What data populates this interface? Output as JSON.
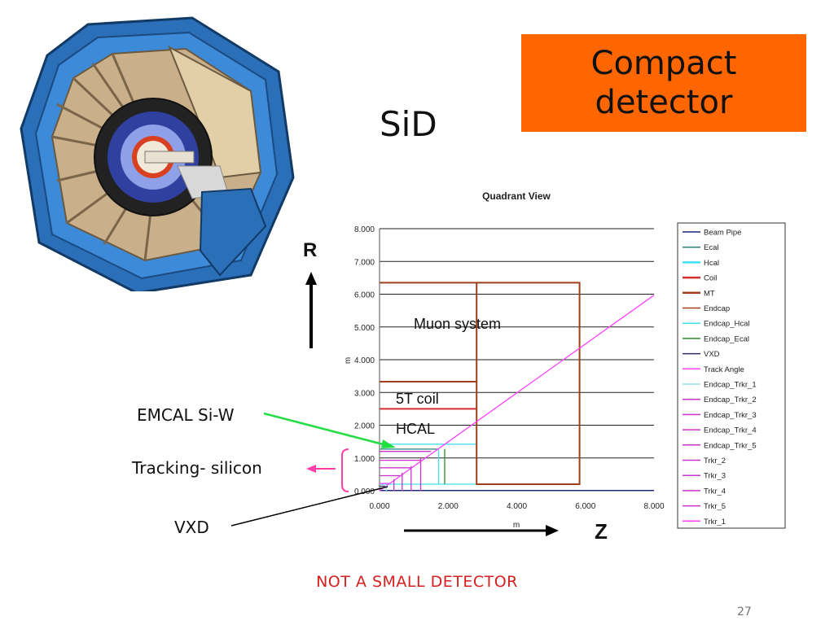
{
  "slide": {
    "title_banner": [
      "Compact",
      "detector"
    ],
    "heading": "SiD",
    "footer_note": "NOT A SMALL DETECTOR",
    "slide_number": "27",
    "callouts": {
      "emcal": "EMCAL Si-W",
      "tracking": "Tracking- silicon",
      "vxd": "VXD"
    },
    "axis_letters": {
      "r": "R",
      "z": "Z"
    }
  },
  "chart_data": {
    "type": "line",
    "title": "Quadrant View",
    "xlabel": "m",
    "ylabel": "m",
    "xlim": [
      0,
      8
    ],
    "ylim": [
      0,
      8
    ],
    "x_ticks": [
      "0.000",
      "2.000",
      "4.000",
      "6.000",
      "8.000"
    ],
    "y_ticks": [
      "0.000",
      "1.000",
      "2.000",
      "3.000",
      "4.000",
      "5.000",
      "6.000",
      "7.000",
      "8.000"
    ],
    "grid": "horizontal",
    "legend_position": "right",
    "annotations": [
      "Muon system",
      "5T coil",
      "HCAL"
    ],
    "series": [
      {
        "name": "Beam Pipe",
        "color": "#1a237e",
        "points": [
          [
            0,
            0.01
          ],
          [
            8,
            0.01
          ]
        ]
      },
      {
        "name": "Ecal",
        "color": "#2e7d7d",
        "points": [
          [
            0,
            1.27
          ],
          [
            1.72,
            1.27
          ]
        ]
      },
      {
        "name": "Hcal",
        "color": "#40e0f0",
        "points": [
          [
            0,
            1.42
          ],
          [
            2.83,
            1.42
          ],
          [
            2.83,
            0.2
          ],
          [
            0,
            0.2
          ]
        ]
      },
      {
        "name": "Coil",
        "color": "#d32f2f",
        "points": [
          [
            0,
            2.5
          ],
          [
            2.83,
            2.5
          ]
        ]
      },
      {
        "name": "MT",
        "color": "#a0401a",
        "points": [
          [
            0,
            3.33
          ],
          [
            2.83,
            3.33
          ]
        ]
      },
      {
        "name": "Endcap",
        "color": "#a0401a",
        "points": [
          [
            0,
            6.35
          ],
          [
            5.83,
            6.35
          ],
          [
            5.83,
            0.2
          ],
          [
            2.83,
            0.2
          ],
          [
            2.83,
            6.35
          ]
        ]
      },
      {
        "name": "Endcap_Hcal",
        "color": "#40e0f0",
        "points": [
          [
            1.72,
            0.2
          ],
          [
            1.72,
            1.27
          ]
        ]
      },
      {
        "name": "Endcap_Ecal",
        "color": "#2e8b2e",
        "points": [
          [
            1.9,
            0.2
          ],
          [
            1.9,
            1.27
          ]
        ]
      },
      {
        "name": "VXD",
        "color": "#303060",
        "points": [
          [
            0,
            0.14
          ],
          [
            0.16,
            0.14
          ]
        ]
      },
      {
        "name": "Track Angle",
        "color": "#ff40ff",
        "points": [
          [
            0,
            0
          ],
          [
            8,
            5.97
          ]
        ]
      },
      {
        "name": "Endcap_Trkr_1",
        "color": "#90e0e0",
        "points": [
          [
            0.2,
            0
          ],
          [
            0.2,
            0.2
          ]
        ]
      },
      {
        "name": "Endcap_Trkr_2",
        "color": "#cc33cc",
        "points": [
          [
            0.42,
            0
          ],
          [
            0.42,
            0.35
          ]
        ]
      },
      {
        "name": "Endcap_Trkr_3",
        "color": "#cc33cc",
        "points": [
          [
            0.66,
            0
          ],
          [
            0.66,
            0.55
          ]
        ]
      },
      {
        "name": "Endcap_Trkr_4",
        "color": "#cc33cc",
        "points": [
          [
            0.92,
            0
          ],
          [
            0.92,
            0.75
          ]
        ]
      },
      {
        "name": "Endcap_Trkr_5",
        "color": "#cc33cc",
        "points": [
          [
            1.2,
            0
          ],
          [
            1.2,
            1.0
          ]
        ]
      },
      {
        "name": "Trkr_2",
        "color": "#cc33cc",
        "points": [
          [
            0,
            0.46
          ],
          [
            0.6,
            0.46
          ]
        ]
      },
      {
        "name": "Trkr_3",
        "color": "#cc33cc",
        "points": [
          [
            0,
            0.7
          ],
          [
            0.9,
            0.7
          ]
        ]
      },
      {
        "name": "Trkr_4",
        "color": "#cc33cc",
        "points": [
          [
            0,
            0.93
          ],
          [
            1.2,
            0.93
          ]
        ]
      },
      {
        "name": "Trkr_5",
        "color": "#cc33cc",
        "points": [
          [
            0,
            1.2
          ],
          [
            1.5,
            1.2
          ]
        ]
      },
      {
        "name": "Trkr_1",
        "color": "#ff40ff",
        "points": [
          [
            0,
            0.22
          ],
          [
            0.3,
            0.22
          ]
        ]
      }
    ]
  }
}
